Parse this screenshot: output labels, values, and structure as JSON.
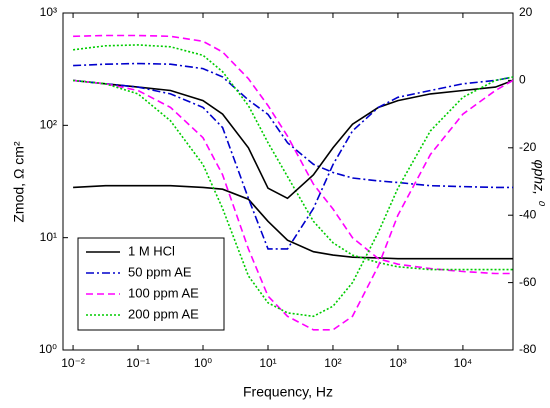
{
  "chart_data": {
    "type": "line",
    "xlabel": "Frequency, Hz",
    "ylabel": "Zmod, Ω cm²",
    "y2label": "φphz, ⁰",
    "xscale": "log",
    "yscale": "log",
    "xlim": [
      0.007,
      59000
    ],
    "xticks": [
      {
        "value": 0.01,
        "label": "10⁻²"
      },
      {
        "value": 0.1,
        "label": "10⁻¹"
      },
      {
        "value": 1,
        "label": "10⁰"
      },
      {
        "value": 10,
        "label": "10¹"
      },
      {
        "value": 100,
        "label": "10²"
      },
      {
        "value": 1000,
        "label": "10³"
      },
      {
        "value": 10000,
        "label": "10⁴"
      }
    ],
    "ylim": [
      1,
      1000
    ],
    "yticks": [
      {
        "value": 1,
        "label": "10⁰"
      },
      {
        "value": 10,
        "label": "10¹"
      },
      {
        "value": 100,
        "label": "10²"
      },
      {
        "value": 1000,
        "label": "10³"
      }
    ],
    "y2lim": [
      -80,
      20
    ],
    "y2ticks": [
      -80,
      -60,
      -40,
      -20,
      0,
      20
    ],
    "legend": "lower left",
    "x": [
      0.01,
      0.0316,
      0.1,
      0.316,
      1,
      2,
      5,
      10,
      20,
      50,
      100,
      200,
      500,
      1000,
      3162,
      10000,
      31623,
      59000
    ],
    "series": [
      {
        "name": "1 M HCl",
        "color": "#000000",
        "dash": "solid",
        "values": [
          28,
          29,
          29,
          29,
          28,
          27,
          22,
          14,
          9.5,
          7.5,
          7,
          6.7,
          6.6,
          6.5,
          6.5,
          6.5,
          6.5,
          6.5
        ]
      },
      {
        "name": "50 ppm AE",
        "color": "#0000cc",
        "dash": "dashdot",
        "values": [
          340,
          350,
          355,
          350,
          320,
          270,
          168,
          125,
          70,
          45,
          38,
          34,
          32,
          31,
          29,
          28.5,
          28,
          28
        ]
      },
      {
        "name": "100 ppm AE",
        "color": "#ff00ff",
        "dash": "dashed",
        "values": [
          620,
          630,
          630,
          620,
          560,
          450,
          260,
          150,
          80,
          30,
          18,
          10,
          6.5,
          5.8,
          5.3,
          5,
          4.8,
          4.8
        ]
      },
      {
        "name": "200 ppm AE",
        "color": "#00cc00",
        "dash": "dotted",
        "values": [
          470,
          510,
          520,
          500,
          420,
          300,
          150,
          70,
          35,
          14,
          9,
          7,
          6,
          5.5,
          5.2,
          5.2,
          5.2,
          5.2
        ]
      },
      {
        "name": "1 M HCl",
        "color": "#000000",
        "dash": "solid",
        "axis": "y2",
        "values": [
          0,
          -1,
          -2,
          -3,
          -6,
          -10,
          -20,
          -32,
          -35,
          -28,
          -20,
          -13,
          -8,
          -6,
          -4,
          -3,
          -2,
          0
        ]
      },
      {
        "name": "50 ppm AE",
        "color": "#0000cc",
        "dash": "dashdot",
        "axis": "y2",
        "values": [
          0,
          -1,
          -2,
          -4,
          -8,
          -14,
          -35,
          -50,
          -50,
          -38,
          -25,
          -15,
          -8,
          -5,
          -3,
          -1,
          0,
          1
        ]
      },
      {
        "name": "100 ppm AE",
        "color": "#ff00ff",
        "dash": "dashed",
        "axis": "y2",
        "values": [
          0,
          -1,
          -3,
          -8,
          -17,
          -28,
          -50,
          -64,
          -70,
          -74,
          -74,
          -70,
          -55,
          -40,
          -22,
          -10,
          -3,
          0
        ]
      },
      {
        "name": "200 ppm AE",
        "color": "#00cc00",
        "dash": "dotted",
        "axis": "y2",
        "values": [
          0,
          -1,
          -4,
          -12,
          -25,
          -38,
          -58,
          -66,
          -69,
          -70,
          -67,
          -60,
          -45,
          -32,
          -15,
          -5,
          0,
          1
        ]
      }
    ]
  }
}
